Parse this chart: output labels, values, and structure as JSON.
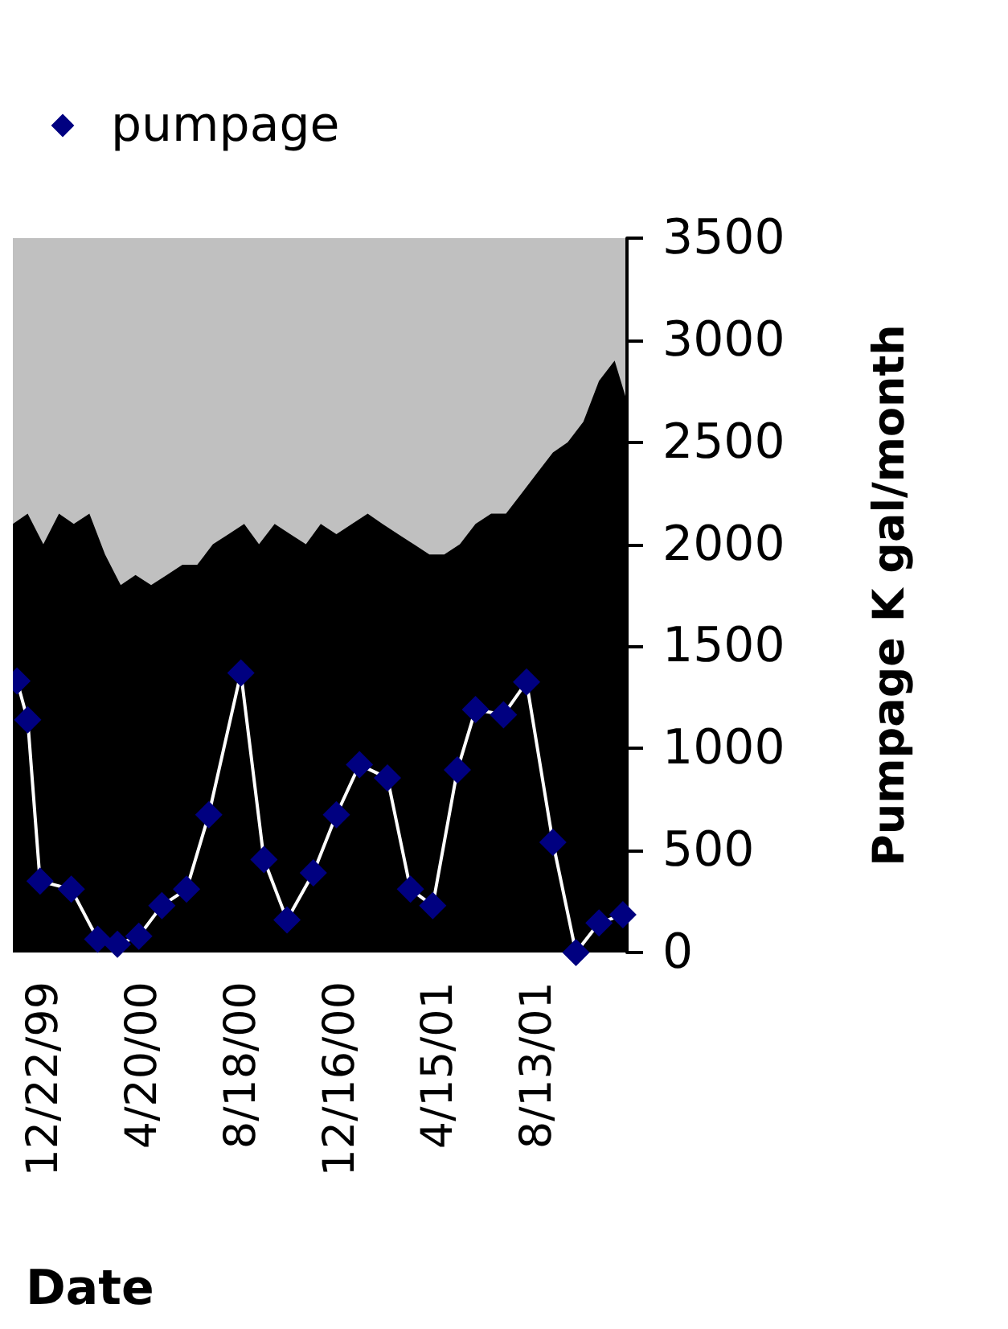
{
  "chart_data": {
    "type": "line",
    "xlabel": "Date",
    "ylabel": "Pumpage K gal/month",
    "xlim": [
      "1999-11-15",
      "2001-11-30"
    ],
    "xticks": [
      {
        "value": "1999-12-22",
        "label": "12/22/99"
      },
      {
        "value": "2000-04-20",
        "label": "4/20/00"
      },
      {
        "value": "2000-08-18",
        "label": "8/18/00"
      },
      {
        "value": "2000-12-16",
        "label": "12/16/00"
      },
      {
        "value": "2001-04-15",
        "label": "4/15/01"
      },
      {
        "value": "2001-08-13",
        "label": "8/13/01"
      }
    ],
    "ylim": [
      0,
      3500
    ],
    "yticks": [
      0,
      500,
      1000,
      1500,
      2000,
      2500,
      3000,
      3500
    ],
    "legend": "top left",
    "marker": "diamond",
    "series": [
      {
        "type": "area",
        "marker": "none",
        "color": "#000000",
        "x": [
          "1999-11-15",
          "1999-12-03",
          "1999-12-22",
          "2000-01-10",
          "2000-01-28",
          "2000-02-16",
          "2000-03-06",
          "2000-03-25",
          "2000-04-12",
          "2000-05-01",
          "2000-05-20",
          "2000-06-08",
          "2000-06-26",
          "2000-07-15",
          "2000-08-03",
          "2000-08-22",
          "2000-09-09",
          "2000-09-28",
          "2000-10-17",
          "2000-11-05",
          "2000-11-23",
          "2000-12-12",
          "2000-12-31",
          "2001-01-19",
          "2001-02-06",
          "2001-02-25",
          "2001-03-16",
          "2001-04-04",
          "2001-04-22",
          "2001-05-11",
          "2001-05-30",
          "2001-06-18",
          "2001-07-06",
          "2001-07-25",
          "2001-08-13",
          "2001-09-01",
          "2001-09-19",
          "2001-10-08",
          "2001-10-27",
          "2001-11-15",
          "2001-11-30"
        ],
        "values": [
          2100,
          2150,
          2000,
          2150,
          2100,
          2150,
          1950,
          1800,
          1850,
          1800,
          1850,
          1900,
          1900,
          2000,
          2050,
          2100,
          2000,
          2100,
          2050,
          2000,
          2100,
          2050,
          2100,
          2150,
          2100,
          2050,
          2000,
          1950,
          1950,
          2000,
          2100,
          2150,
          2150,
          2250,
          2350,
          2450,
          2500,
          2600,
          2800,
          2900,
          2700
        ]
      },
      {
        "name": "pumpage",
        "color": "#000080",
        "x": [
          "1999-11-20",
          "1999-12-03",
          "1999-12-18",
          "2000-01-25",
          "2000-02-26",
          "2000-03-21",
          "2000-04-16",
          "2000-05-14",
          "2000-06-13",
          "2000-07-10",
          "2000-08-18",
          "2000-09-15",
          "2000-10-13",
          "2000-11-14",
          "2000-12-12",
          "2001-01-09",
          "2001-02-12",
          "2001-03-12",
          "2001-04-08",
          "2001-05-08",
          "2001-05-30",
          "2001-07-03",
          "2001-07-31",
          "2001-09-01",
          "2001-09-29",
          "2001-10-27",
          "2001-11-25"
        ],
        "values": [
          1330,
          1140,
          350,
          310,
          65,
          40,
          80,
          230,
          310,
          675,
          1370,
          455,
          160,
          390,
          675,
          920,
          855,
          310,
          230,
          895,
          1190,
          1165,
          1325,
          540,
          0,
          145,
          185
        ]
      }
    ]
  }
}
